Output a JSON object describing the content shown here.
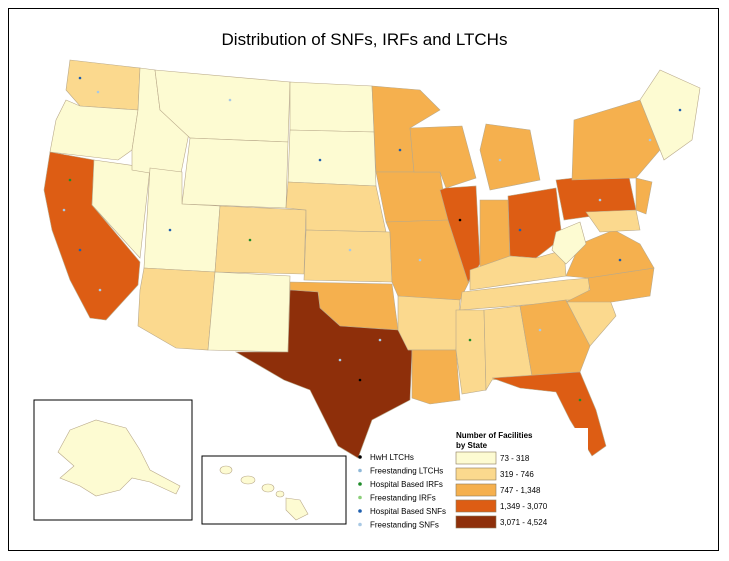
{
  "title": "Distribution of SNFs, IRFs and LTCHs",
  "legend_points": {
    "items": [
      {
        "label": "HwH LTCHs",
        "color": "#000000"
      },
      {
        "label": "Freestanding LTCHs",
        "color": "#8fb8d8"
      },
      {
        "label": "Hospital Based IRFs",
        "color": "#1f8c2a"
      },
      {
        "label": "Freestanding IRFs",
        "color": "#8ccf7a"
      },
      {
        "label": "Hospital Based SNFs",
        "color": "#1f5fae"
      },
      {
        "label": "Freestanding SNFs",
        "color": "#a9c9e4"
      }
    ]
  },
  "legend_classes": {
    "heading_line1": "Number of Facilities",
    "heading_line2": "by State",
    "items": [
      {
        "label": "73 - 318",
        "color": "#fdfbd2"
      },
      {
        "label": "319 - 746",
        "color": "#fbd98e"
      },
      {
        "label": "747 - 1,348",
        "color": "#f5b04e"
      },
      {
        "label": "1,349 - 3,070",
        "color": "#dd5d14"
      },
      {
        "label": "3,071 - 4,524",
        "color": "#8e2f0a"
      }
    ]
  }
}
